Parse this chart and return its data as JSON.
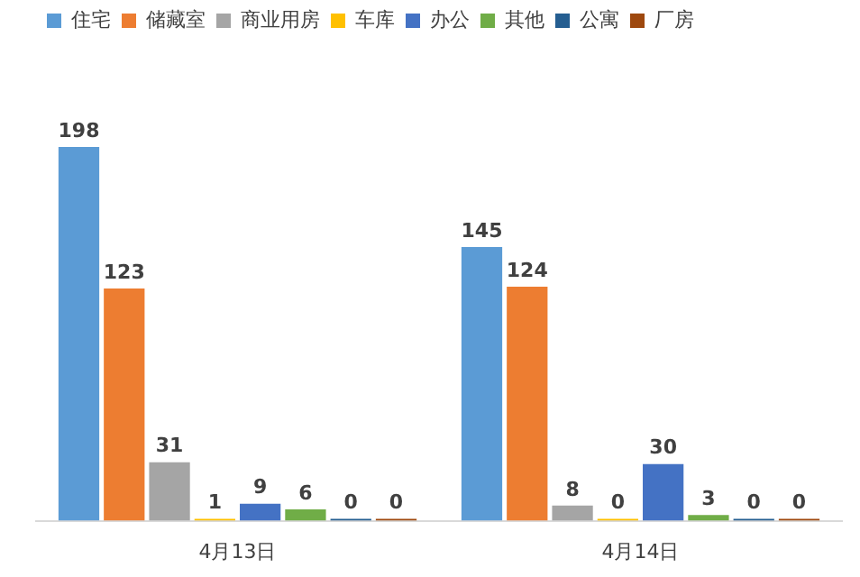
{
  "chart_data": {
    "type": "bar",
    "categories": [
      "4月13日",
      "4月14日"
    ],
    "series": [
      {
        "name": "住宅",
        "color": "#5b9bd5",
        "values": [
          198,
          145
        ]
      },
      {
        "name": "储藏室",
        "color": "#ed7d31",
        "values": [
          123,
          124
        ]
      },
      {
        "name": "商业用房",
        "color": "#a5a5a5",
        "values": [
          31,
          8
        ]
      },
      {
        "name": "车库",
        "color": "#ffc000",
        "values": [
          1,
          0
        ]
      },
      {
        "name": "办公",
        "color": "#4472c4",
        "values": [
          9,
          30
        ]
      },
      {
        "name": "其他",
        "color": "#70ad47",
        "values": [
          6,
          3
        ]
      },
      {
        "name": "公寓",
        "color": "#255e91",
        "values": [
          0,
          0
        ]
      },
      {
        "name": "厂房",
        "color": "#9e480e",
        "values": [
          0,
          0
        ]
      }
    ],
    "data_labels": true,
    "legend": "top",
    "grid": false,
    "tick_labels": "x"
  }
}
